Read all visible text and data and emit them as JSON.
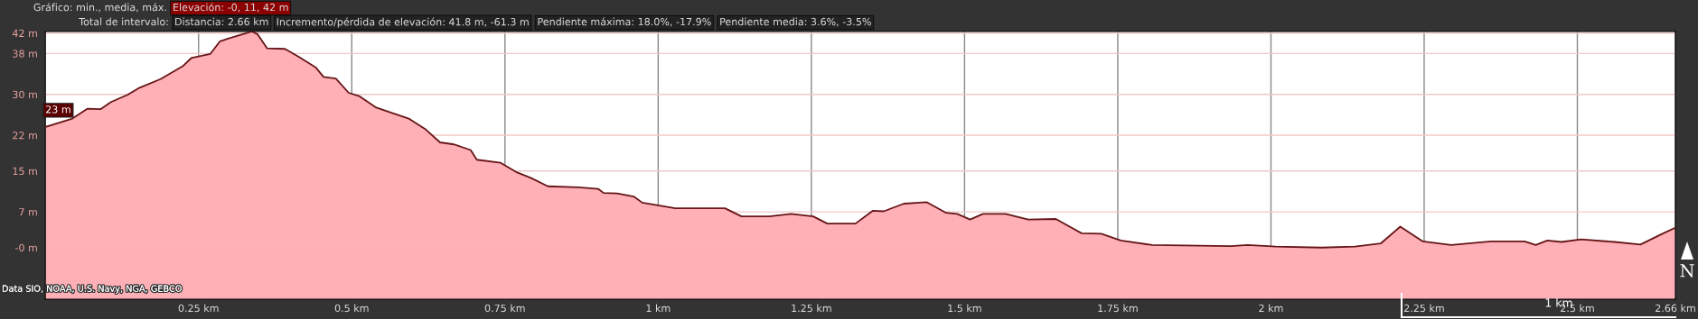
{
  "chart_data": {
    "type": "area",
    "annotations": [
      "Gráfico: min., media, máx.",
      "Elevación: -0, 11, 42 m",
      "Total de intervalo:",
      "Distancia: 2.66 km",
      "Incremento/pérdida de elevación: 41.8 m, -61.3 m",
      "Pendiente máxima: 18.0%, -17.9%",
      "Pendiente media: 3.6%, -3.5%",
      {
        "text": "23 m",
        "x": 0,
        "y": 23
      },
      "Data SIO, NOAA, U.S. Navy, NGA, GEBCO",
      "1 km",
      "N"
    ],
    "x": [
      0,
      0.043,
      0.069,
      0.09,
      0.107,
      0.134,
      0.152,
      0.188,
      0.224,
      0.238,
      0.269,
      0.285,
      0.298,
      0.314,
      0.337,
      0.346,
      0.362,
      0.391,
      0.414,
      0.441,
      0.454,
      0.474,
      0.495,
      0.513,
      0.54,
      0.594,
      0.621,
      0.644,
      0.667,
      0.694,
      0.704,
      0.743,
      0.77,
      0.793,
      0.82,
      0.87,
      0.902,
      0.911,
      0.933,
      0.96,
      0.974,
      1.028,
      1.109,
      1.136,
      1.181,
      1.217,
      1.253,
      1.276,
      1.322,
      1.35,
      1.368,
      1.401,
      1.438,
      1.47,
      1.488,
      1.509,
      1.53,
      1.567,
      1.604,
      1.649,
      1.691,
      1.723,
      1.755,
      1.806,
      1.935,
      1.962,
      2.008,
      2.082,
      2.137,
      2.179,
      2.211,
      2.248,
      2.294,
      2.359,
      2.414,
      2.432,
      2.451,
      2.474,
      2.506,
      2.561,
      2.603,
      2.635,
      2.66
    ],
    "values": [
      23.6,
      25.2,
      27.2,
      27.1,
      28.5,
      29.9,
      31.2,
      33.0,
      35.5,
      37.1,
      37.9,
      40.4,
      40.9,
      41.5,
      42.3,
      41.8,
      39.0,
      38.9,
      37.3,
      35.3,
      33.4,
      33.1,
      30.3,
      29.6,
      27.4,
      25.2,
      23.1,
      20.6,
      20.2,
      19.1,
      17.2,
      16.6,
      14.7,
      13.6,
      12.0,
      11.8,
      11.5,
      10.7,
      10.6,
      10.0,
      8.8,
      7.7,
      7.7,
      6.1,
      6.1,
      6.6,
      6.1,
      4.7,
      4.7,
      7.2,
      7.1,
      8.6,
      8.9,
      6.8,
      6.6,
      5.5,
      6.6,
      6.6,
      5.5,
      5.6,
      2.8,
      2.7,
      1.4,
      0.5,
      0.3,
      0.5,
      0.2,
      0.0,
      0.2,
      0.8,
      4.1,
      1.2,
      0.5,
      1.2,
      1.2,
      0.5,
      1.4,
      1.1,
      1.6,
      1.1,
      0.6,
      2.5,
      3.9
    ],
    "color": "#ffb0b6",
    "xlim": [
      0,
      2.66
    ],
    "xticks": [
      {
        "value": 0.25,
        "label": "0.25 km"
      },
      {
        "value": 0.5,
        "label": "0.5 km"
      },
      {
        "value": 0.75,
        "label": "0.75 km"
      },
      {
        "value": 1,
        "label": "1 km"
      },
      {
        "value": 1.25,
        "label": "1.25 km"
      },
      {
        "value": 1.5,
        "label": "1.5 km"
      },
      {
        "value": 1.75,
        "label": "1.75 km"
      },
      {
        "value": 2,
        "label": "2 km"
      },
      {
        "value": 2.25,
        "label": "2.25 km"
      },
      {
        "value": 2.5,
        "label": "2.5 km"
      },
      {
        "value": 2.66,
        "label": "2.66 km"
      }
    ],
    "ylim": [
      -10.1,
      42.3
    ],
    "yticks": [
      {
        "value": 0,
        "label": "-0 m"
      },
      {
        "value": 7,
        "label": "7 m"
      },
      {
        "value": 15,
        "label": "15 m"
      },
      {
        "value": 22,
        "label": "22 m"
      },
      {
        "value": 30,
        "label": "30 m"
      },
      {
        "value": 38,
        "label": "38 m"
      },
      {
        "value": 42,
        "label": "42 m"
      }
    ],
    "bands": [
      {
        "axis": "y",
        "from": -10.1,
        "to": 0,
        "color": "#ffb0b6"
      }
    ],
    "grid": true
  }
}
